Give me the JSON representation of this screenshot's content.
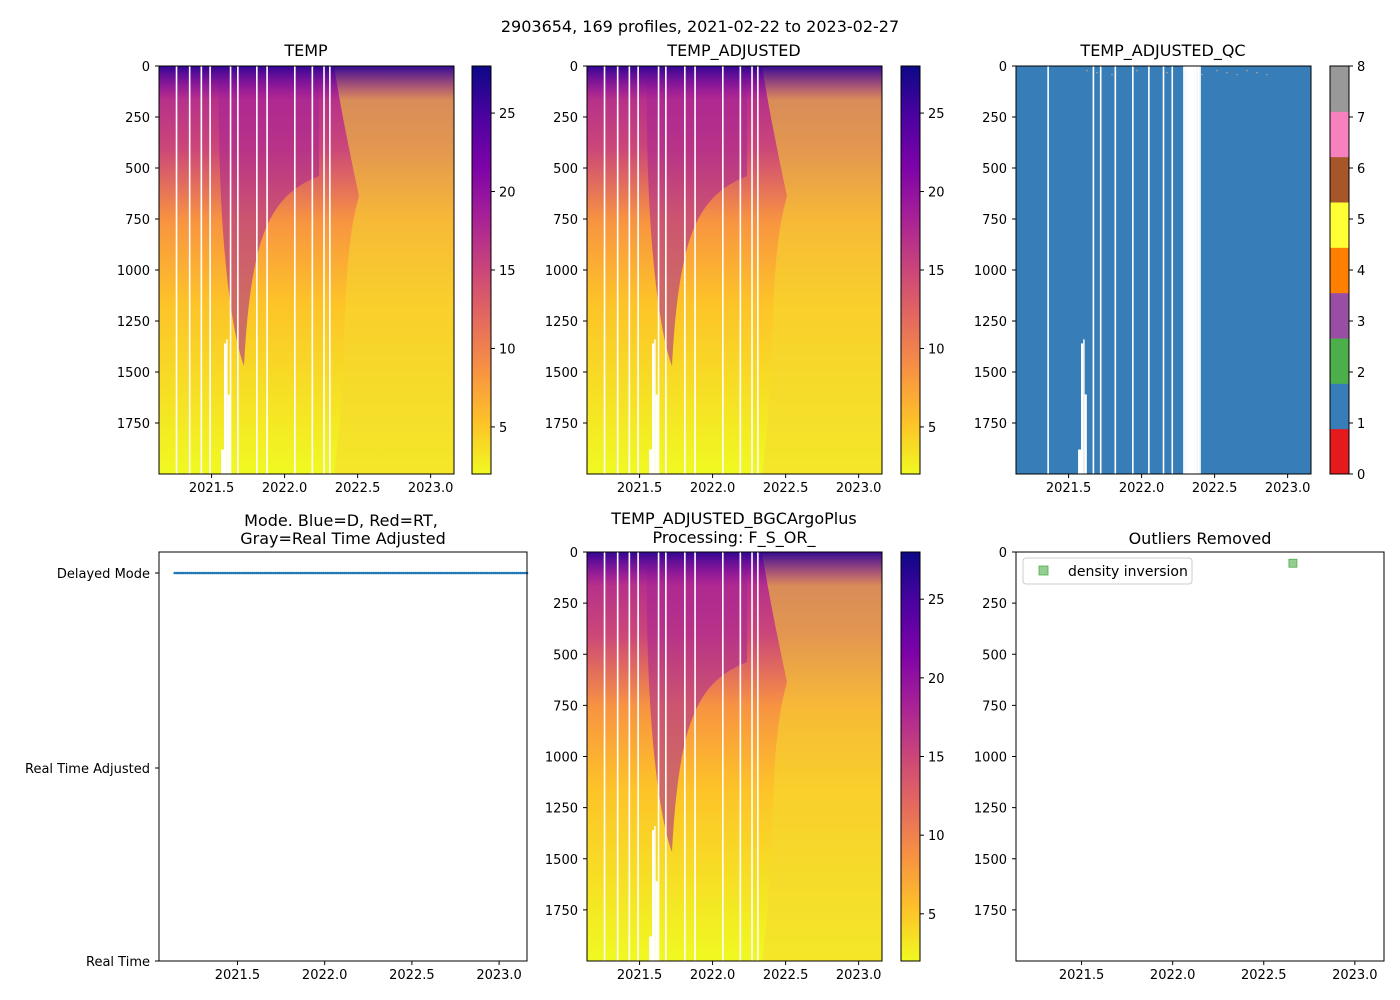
{
  "figure": {
    "suptitle": "2903654, 169 profiles, 2021-02-22 to 2023-02-27"
  },
  "colors": {
    "temp_stops": [
      "#f0f921",
      "#fdc328",
      "#f89441",
      "#e56b5d",
      "#cb4679",
      "#a82296",
      "#7e03a8",
      "#4c02a1",
      "#0d0887"
    ],
    "qc_colors": [
      "#e41a1c",
      "#377eb8",
      "#4daf4a",
      "#984ea3",
      "#ff7f00",
      "#ffff33",
      "#a65628",
      "#f781bf",
      "#999999"
    ],
    "mode_blue": "#1f77b4",
    "outlier_green": "#4daf4a"
  },
  "chart_data": [
    {
      "id": "temp",
      "type": "heatmap",
      "title": "TEMP",
      "xlim": [
        2021.14,
        2023.16
      ],
      "ylim": [
        2000,
        0
      ],
      "xticks": [
        "2021.5",
        "2022.0",
        "2022.5",
        "2023.0"
      ],
      "yticks": [
        "0",
        "250",
        "500",
        "750",
        "1000",
        "1250",
        "1500",
        "1750"
      ],
      "colorbar": {
        "range": [
          2,
          28
        ],
        "ticks": [
          "5",
          "10",
          "15",
          "20",
          "25"
        ]
      },
      "gaps_x": [
        2021.26,
        2021.35,
        2021.43,
        2021.49,
        2021.63,
        2021.68,
        2021.81,
        2021.88,
        2022.07,
        2022.19,
        2022.27,
        2022.31
      ]
    },
    {
      "id": "temp_adj",
      "type": "heatmap",
      "title": "TEMP_ADJUSTED",
      "xlim": [
        2021.14,
        2023.16
      ],
      "ylim": [
        2000,
        0
      ],
      "xticks": [
        "2021.5",
        "2022.0",
        "2022.5",
        "2023.0"
      ],
      "yticks": [
        "0",
        "250",
        "500",
        "750",
        "1000",
        "1250",
        "1500",
        "1750"
      ],
      "colorbar": {
        "range": [
          2,
          28
        ],
        "ticks": [
          "5",
          "10",
          "15",
          "20",
          "25"
        ]
      },
      "gaps_x": [
        2021.26,
        2021.35,
        2021.43,
        2021.49,
        2021.63,
        2021.68,
        2021.81,
        2021.88,
        2022.07,
        2022.19,
        2022.27,
        2022.31
      ]
    },
    {
      "id": "temp_qc",
      "type": "heatmap",
      "title": "TEMP_ADJUSTED_QC",
      "xlim": [
        2021.14,
        2023.16
      ],
      "ylim": [
        2000,
        0
      ],
      "xticks": [
        "2021.5",
        "2022.0",
        "2022.5",
        "2023.0"
      ],
      "yticks": [
        "0",
        "250",
        "500",
        "750",
        "1000",
        "1250",
        "1500",
        "1750"
      ],
      "colorbar": {
        "range": [
          0,
          8
        ],
        "ticks": [
          "0",
          "1",
          "2",
          "3",
          "4",
          "5",
          "6",
          "7",
          "8"
        ]
      },
      "value": 1,
      "gaps_x": [
        2021.36,
        2021.67,
        2021.72,
        2021.82,
        2021.94,
        2022.05,
        2022.15,
        2022.21,
        2022.29,
        2022.3,
        2022.31,
        2022.32,
        2022.33,
        2022.34,
        2022.35,
        2022.36,
        2022.37,
        2022.38,
        2022.39,
        2022.4
      ]
    },
    {
      "id": "mode",
      "type": "scatter",
      "title": "Mode. Blue=D, Red=RT,",
      "title2": "Gray=Real Time Adjusted",
      "xlim": [
        2021.05,
        2023.16
      ],
      "xticks": [
        "2021.5",
        "2022.0",
        "2022.5",
        "2023.0"
      ],
      "ycategories": [
        "Delayed Mode",
        "Real Time Adjusted",
        "Real Time"
      ],
      "series": [
        {
          "name": "Delayed Mode",
          "x_start": 2021.14,
          "x_end": 2023.16,
          "count": 169,
          "y": "Delayed Mode"
        }
      ]
    },
    {
      "id": "bgc",
      "type": "heatmap",
      "title": "TEMP_ADJUSTED_BGCArgoPlus",
      "title2": "Processing: F_S_OR_",
      "xlim": [
        2021.14,
        2023.16
      ],
      "ylim": [
        2000,
        0
      ],
      "xticks": [
        "2021.5",
        "2022.0",
        "2022.5",
        "2023.0"
      ],
      "yticks": [
        "0",
        "250",
        "500",
        "750",
        "1000",
        "1250",
        "1500",
        "1750"
      ],
      "colorbar": {
        "range": [
          2,
          28
        ],
        "ticks": [
          "5",
          "10",
          "15",
          "20",
          "25"
        ]
      },
      "gaps_x": [
        2021.26,
        2021.35,
        2021.43,
        2021.49,
        2021.63,
        2021.68,
        2021.81,
        2021.88,
        2022.07,
        2022.19,
        2022.27,
        2022.31
      ]
    },
    {
      "id": "outliers",
      "type": "scatter",
      "title": "Outliers Removed",
      "xlim": [
        2021.14,
        2023.16
      ],
      "ylim": [
        2000,
        0
      ],
      "xticks": [
        "2021.5",
        "2022.0",
        "2022.5",
        "2023.0"
      ],
      "yticks": [
        "0",
        "250",
        "500",
        "750",
        "1000",
        "1250",
        "1500",
        "1750"
      ],
      "legend": {
        "label": "density inversion",
        "placement": "upper-left"
      },
      "points": [
        {
          "x": 2022.66,
          "y": 55,
          "label": "density inversion"
        }
      ]
    }
  ]
}
